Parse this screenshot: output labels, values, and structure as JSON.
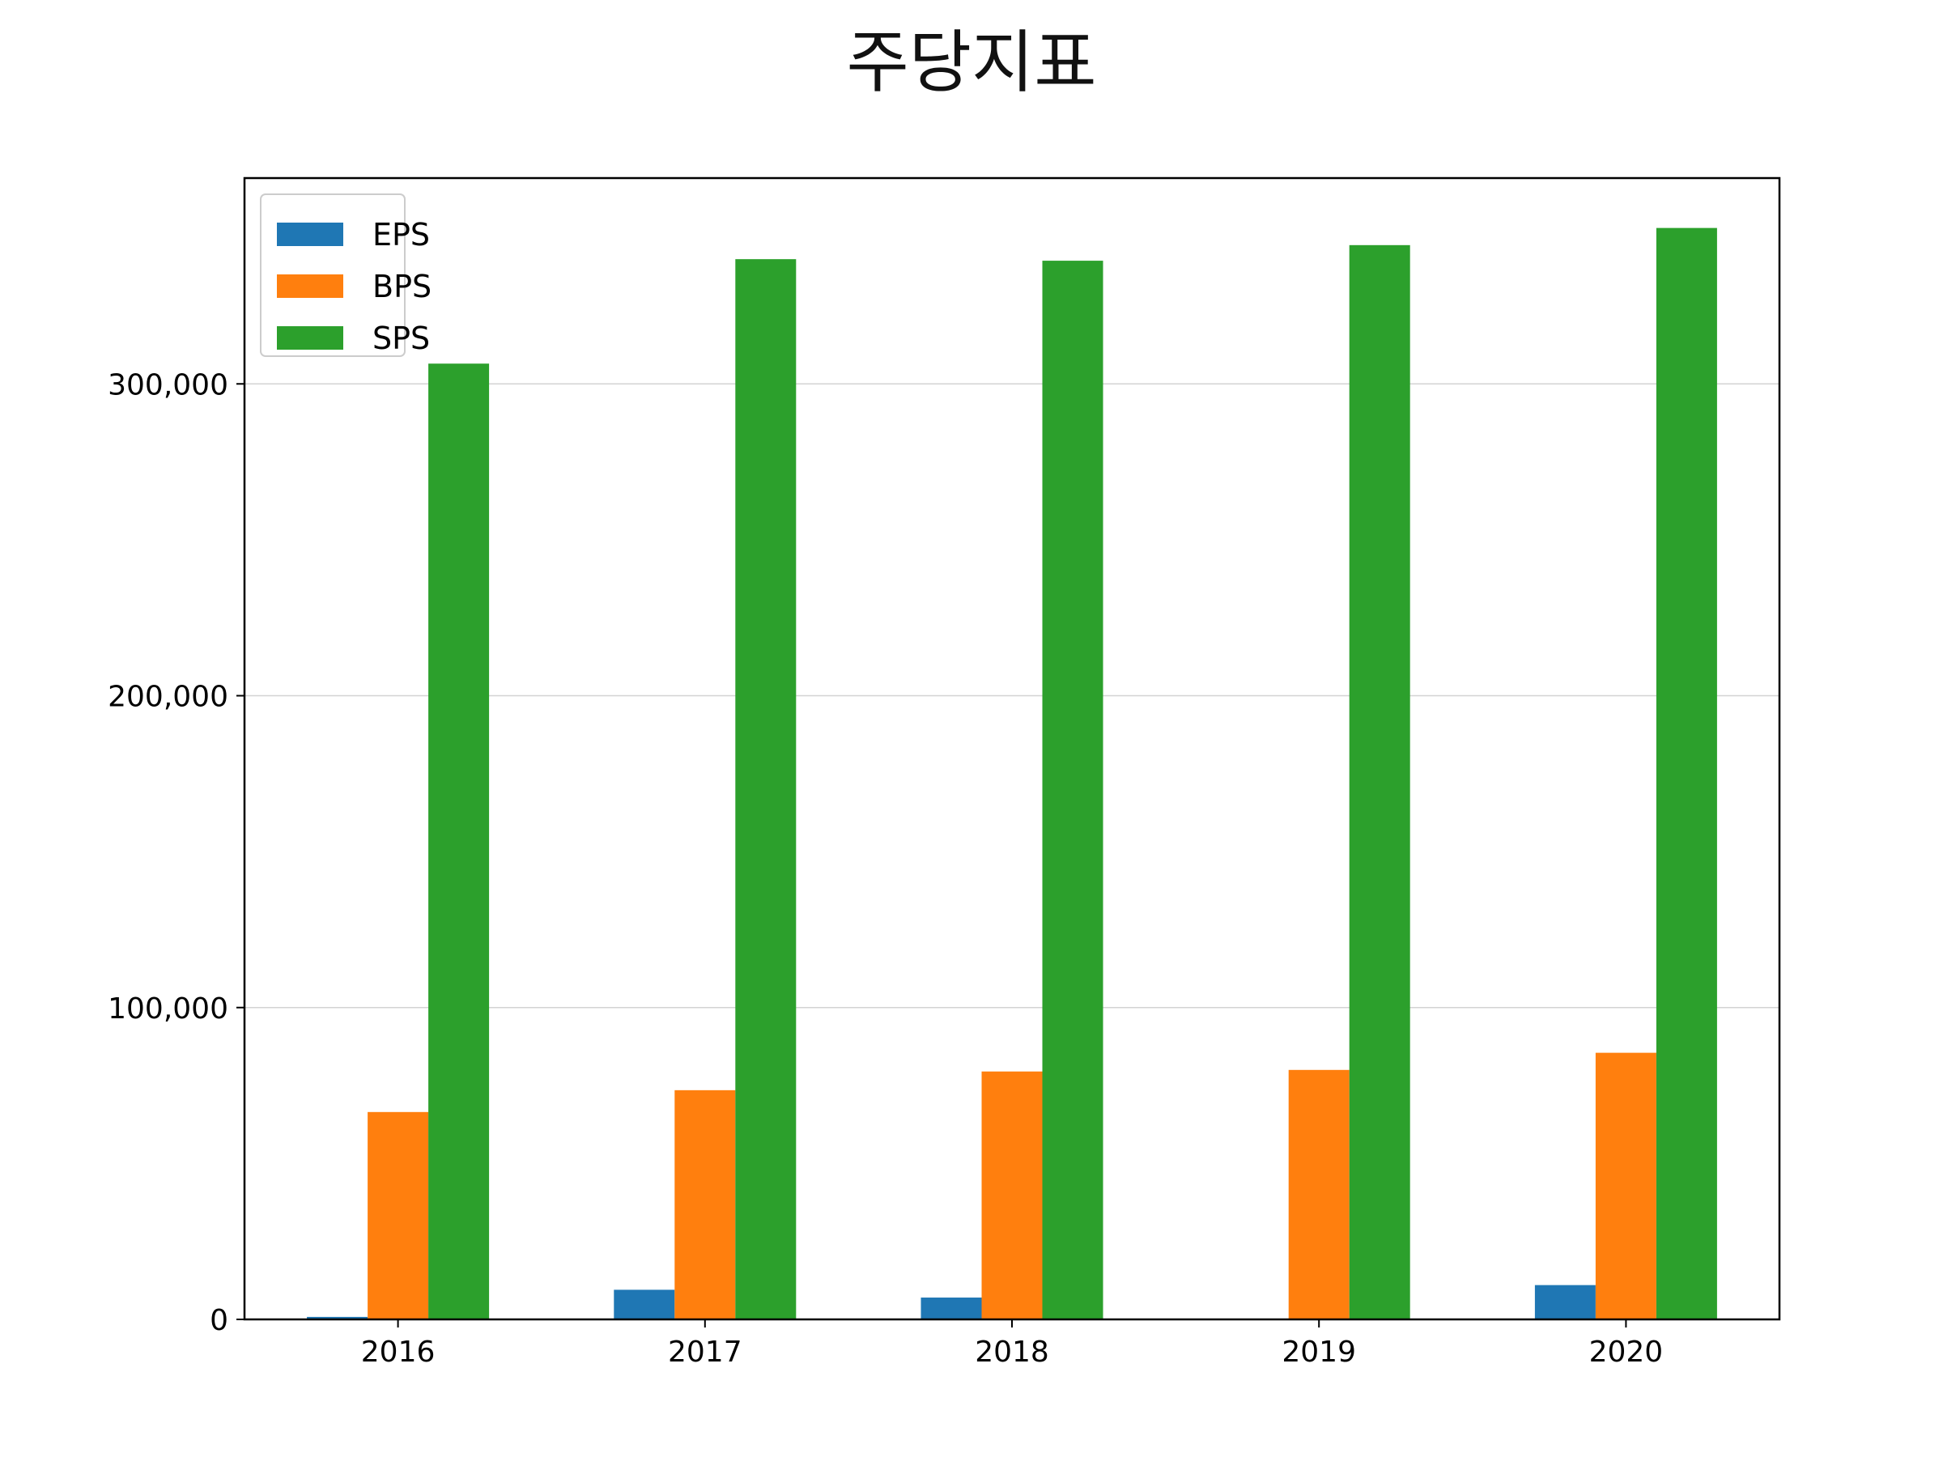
{
  "chart_data": {
    "type": "bar",
    "title": "주당지표",
    "xlabel": "",
    "ylabel": "",
    "categories": [
      "2016",
      "2017",
      "2018",
      "2019",
      "2020"
    ],
    "series": [
      {
        "name": "EPS",
        "color": "#1f77b4",
        "values": [
          800,
          9500,
          7000,
          200,
          11000
        ]
      },
      {
        "name": "BPS",
        "color": "#ff7f0e",
        "values": [
          66500,
          73500,
          79500,
          80000,
          85500
        ]
      },
      {
        "name": "SPS",
        "color": "#2ca02c",
        "values": [
          306500,
          340000,
          339500,
          344500,
          350000
        ]
      }
    ],
    "ylim": [
      0,
      366000
    ],
    "yticks": [
      0,
      100000,
      200000,
      300000
    ],
    "ytick_labels": [
      "0",
      "100,000",
      "200,000",
      "300,000"
    ],
    "grid": "horizontal",
    "legend": "top-left"
  }
}
